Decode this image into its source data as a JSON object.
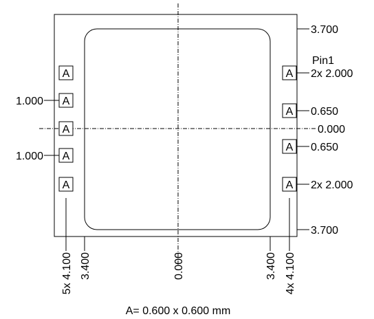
{
  "drawing": {
    "pad_letter": "A",
    "right_labels": {
      "top": "3.700",
      "pin1": "Pin1",
      "pin_pitch_top": "2x 2.000",
      "pin_upper": "0.650",
      "center": "0.000",
      "pin_lower": "0.650",
      "pin_pitch_bottom": "2x 2.000",
      "bottom": "3.700"
    },
    "left_labels": {
      "upper": "1.000",
      "lower": "1.000"
    },
    "bottom_labels": {
      "left_pins": "5x 4.100",
      "left_body": "3.400",
      "center": "0.000",
      "right_body": "3.400",
      "right_pins": "4x 4.100"
    },
    "caption": "A= 0.600 x 0.600 mm"
  }
}
